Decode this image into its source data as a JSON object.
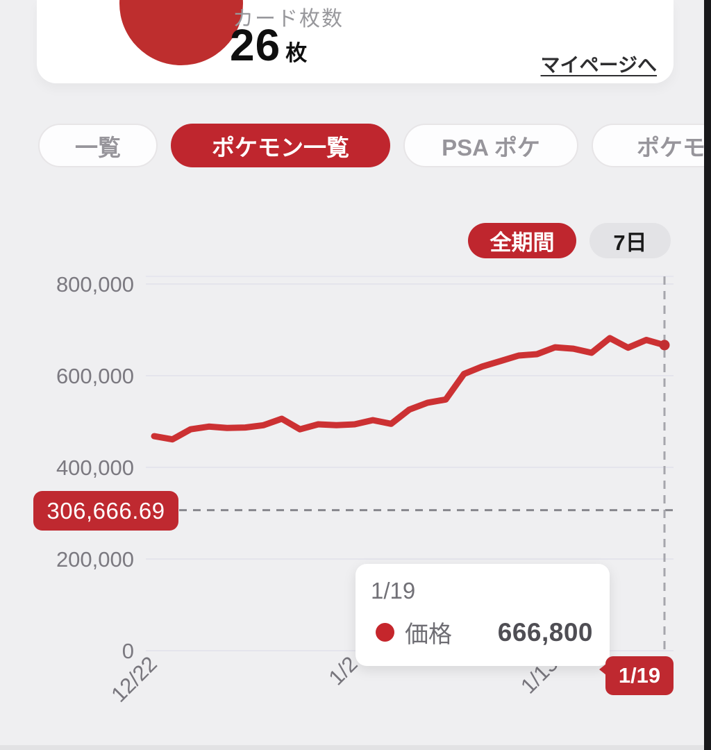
{
  "header": {
    "card_count_label": "カード枚数",
    "card_count_value": "26",
    "card_count_unit": "枚",
    "mypage_link": "マイページへ"
  },
  "tabs": [
    {
      "label": "一覧",
      "active": false
    },
    {
      "label": "ポケモン一覧",
      "active": true
    },
    {
      "label": "PSA ポケ",
      "active": false
    },
    {
      "label": "ポケモン",
      "active": false
    }
  ],
  "period_buttons": [
    {
      "label": "全期間",
      "active": true
    },
    {
      "label": "7日",
      "active": false
    }
  ],
  "colors": {
    "accent_red": "#bf2930",
    "line_red": "#cc3133",
    "background": "#efeff1",
    "card_white": "#ffffff",
    "grid_line": "#e4e4ec",
    "axis_text": "#7b7980"
  },
  "chart_data": {
    "type": "line",
    "title": "",
    "xlabel": "",
    "ylabel": "",
    "legend": "none",
    "grid": true,
    "ylim": [
      0,
      820000
    ],
    "x": [
      "12/22",
      "12/23",
      "12/24",
      "12/25",
      "12/26",
      "12/27",
      "12/28",
      "12/29",
      "12/30",
      "12/31",
      "1/1",
      "1/2",
      "1/3",
      "1/4",
      "1/5",
      "1/6",
      "1/7",
      "1/8",
      "1/9",
      "1/10",
      "1/11",
      "1/12",
      "1/13",
      "1/14",
      "1/15",
      "1/16",
      "1/17",
      "1/18",
      "1/19"
    ],
    "series": [
      {
        "name": "価格",
        "values": [
          468000,
          461000,
          483000,
          489000,
          486000,
          487000,
          492000,
          506000,
          483000,
          494000,
          492000,
          494000,
          503000,
          495000,
          526000,
          541000,
          548000,
          604000,
          620000,
          632000,
          644000,
          647000,
          662000,
          659000,
          650000,
          682000,
          661000,
          678000,
          666800
        ]
      }
    ],
    "y_ticks": [
      800000,
      600000,
      400000,
      200000,
      0
    ],
    "y_tick_labels": [
      "800,000",
      "600,000",
      "400,000",
      "200,000",
      "0"
    ],
    "x_tick_indices": [
      0,
      11,
      22
    ],
    "x_tick_labels": [
      "12/22",
      "1/2",
      "1/13"
    ],
    "reference_line": {
      "value": 306666.69,
      "label": "306,666.69"
    },
    "crosshair": {
      "index": 28,
      "x_label": "1/19"
    },
    "tooltip": {
      "date": "1/19",
      "series_label": "価格",
      "value": 666800,
      "value_formatted": "666,800"
    }
  }
}
